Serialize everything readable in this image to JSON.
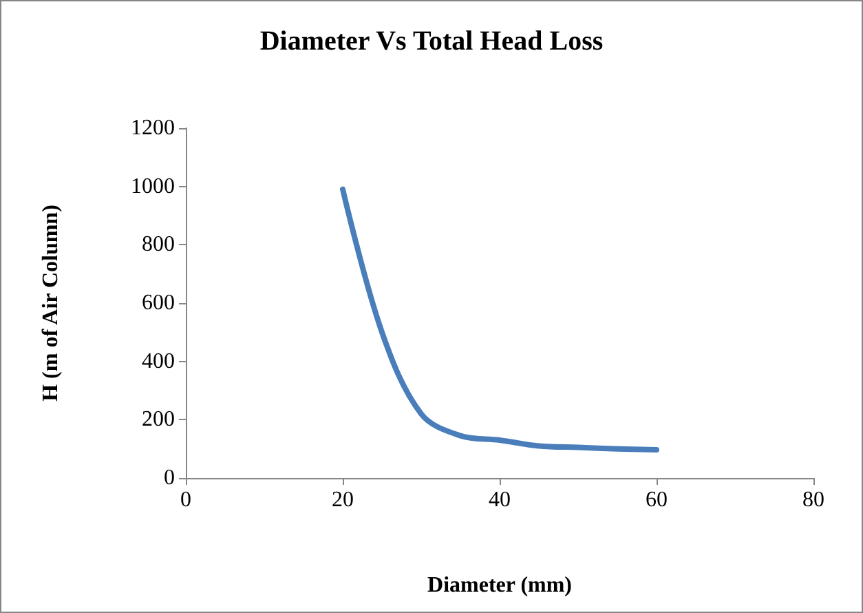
{
  "chart_data": {
    "type": "line",
    "title": "Diameter Vs Total Head Loss",
    "xlabel": "Diameter (mm)",
    "ylabel": "H (m of Air Column)",
    "x": [
      20,
      25,
      30,
      35,
      40,
      45,
      50,
      55,
      60
    ],
    "series": [
      {
        "color": "#4a7ebb",
        "values": [
          990,
          500,
          220,
          145,
          130,
          110,
          105,
          100,
          97
        ]
      }
    ],
    "xlim": [
      0,
      80
    ],
    "xticks": [
      0,
      20,
      40,
      60,
      80
    ],
    "ylim": [
      0,
      1200
    ],
    "yticks": [
      0,
      200,
      400,
      600,
      800,
      1000,
      1200
    ],
    "grid": false,
    "marker": "none",
    "line_style": "solid"
  }
}
